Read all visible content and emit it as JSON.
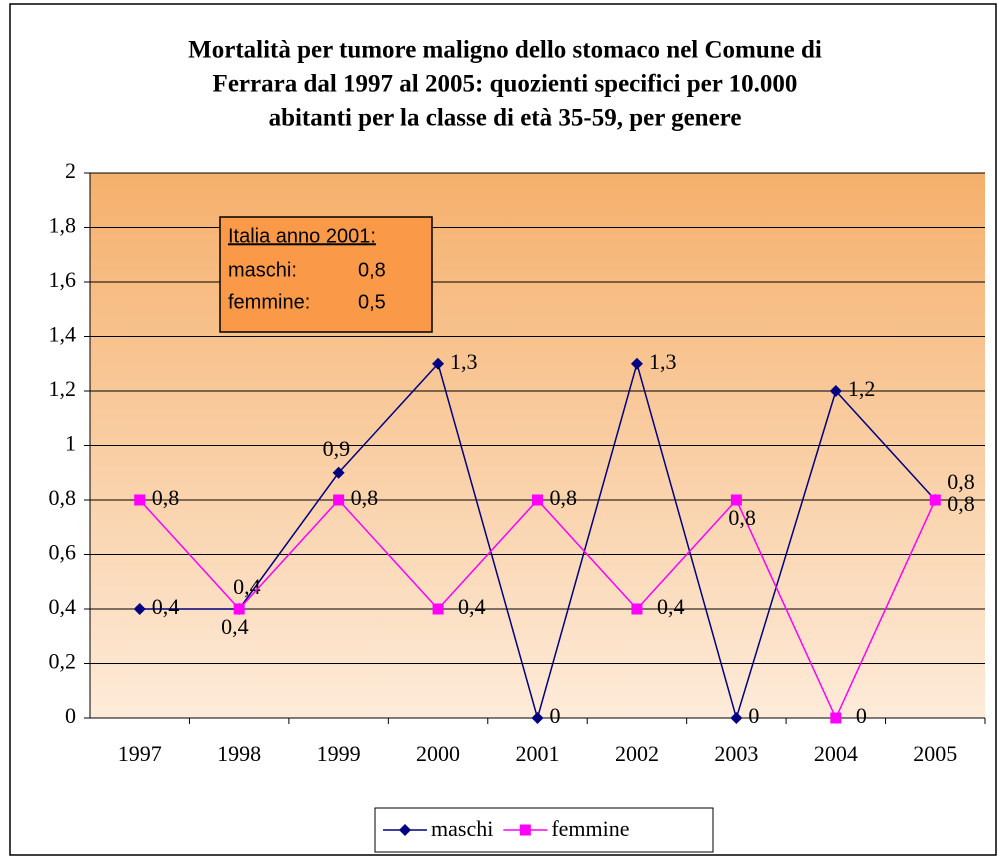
{
  "chart_data": {
    "type": "line",
    "title": [
      "Mortalità per tumore maligno dello stomaco nel Comune di",
      "Ferrara dal 1997 al 2005: quozienti specifici per 10.000",
      "abitanti per la classe di età 35-59, per genere"
    ],
    "categories": [
      "1997",
      "1998",
      "1999",
      "2000",
      "2001",
      "2002",
      "2003",
      "2004",
      "2005"
    ],
    "series": [
      {
        "name": "maschi",
        "color": "#000080",
        "marker": "diamond",
        "values": [
          0.4,
          0.4,
          0.9,
          1.3,
          0,
          1.3,
          0,
          1.2,
          0.8
        ],
        "value_labels": [
          "0,4",
          "0,4",
          "0,9",
          "1,3",
          "0",
          "1,3",
          "0",
          "1,2",
          "0,8"
        ]
      },
      {
        "name": "femmine",
        "color": "#ff00ff",
        "marker": "square",
        "values": [
          0.8,
          0.4,
          0.8,
          0.4,
          0.8,
          0.4,
          0.8,
          0,
          0.8
        ],
        "value_labels": [
          "0,8",
          "0,4",
          "0,8",
          "0,4",
          "0,8",
          "0,4",
          "0,8",
          "0",
          "0,8"
        ]
      }
    ],
    "ylim": [
      0,
      2
    ],
    "yticks": [
      0,
      {
        "value": 0.2,
        "label": "0,2"
      },
      {
        "value": 0.4,
        "label": "0,4"
      },
      {
        "value": 0.6,
        "label": "0,6"
      },
      {
        "value": 0.8,
        "label": "0,8"
      },
      1,
      {
        "value": 1.2,
        "label": "1,2"
      },
      {
        "value": 1.4,
        "label": "1,4"
      },
      {
        "value": 1.6,
        "label": "1,6"
      },
      {
        "value": 1.8,
        "label": "1,8"
      },
      2
    ],
    "grid": true,
    "legend": "bottom",
    "annotation": {
      "title": "Italia anno 2001:",
      "rows": [
        [
          "maschi:",
          "0,8"
        ],
        [
          "femmine:",
          "0,5"
        ]
      ]
    }
  }
}
